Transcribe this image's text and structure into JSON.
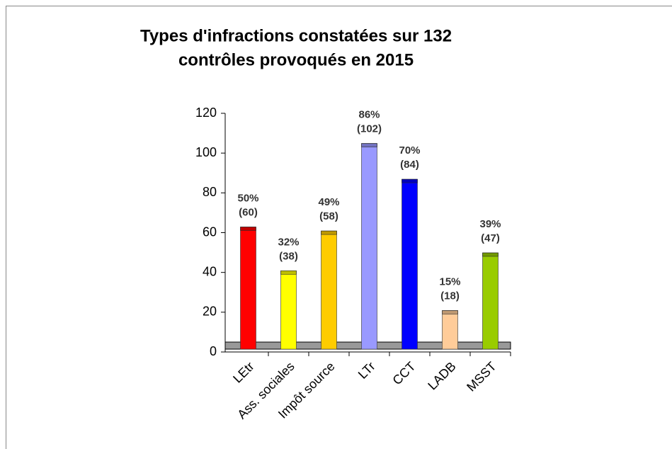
{
  "chart_data": {
    "type": "bar",
    "title": [
      "Types d'infractions constatées sur 132",
      "contrôles provoqués en 2015"
    ],
    "categories": [
      "LEtr",
      "Ass. sociales",
      "Impôt source",
      "LTr",
      "CCT",
      "LADB",
      "MSST"
    ],
    "values": [
      60,
      38,
      58,
      102,
      84,
      18,
      47
    ],
    "value_labels": [
      "(60)",
      "(38)",
      "(58)",
      "(102)",
      "(84)",
      "(18)",
      "(47)"
    ],
    "percents": [
      50,
      32,
      49,
      86,
      70,
      15,
      39
    ],
    "percent_labels": [
      "50%",
      "32%",
      "49%",
      "86%",
      "70%",
      "15%",
      "39%"
    ],
    "colors": [
      "#ff0000",
      "#ffff00",
      "#ffcc00",
      "#9999ff",
      "#0000ff",
      "#ffcc99",
      "#99cc00"
    ],
    "ylim": [
      0,
      120
    ],
    "yticks": [
      0,
      20,
      40,
      60,
      80,
      100,
      120
    ],
    "grid": false
  }
}
